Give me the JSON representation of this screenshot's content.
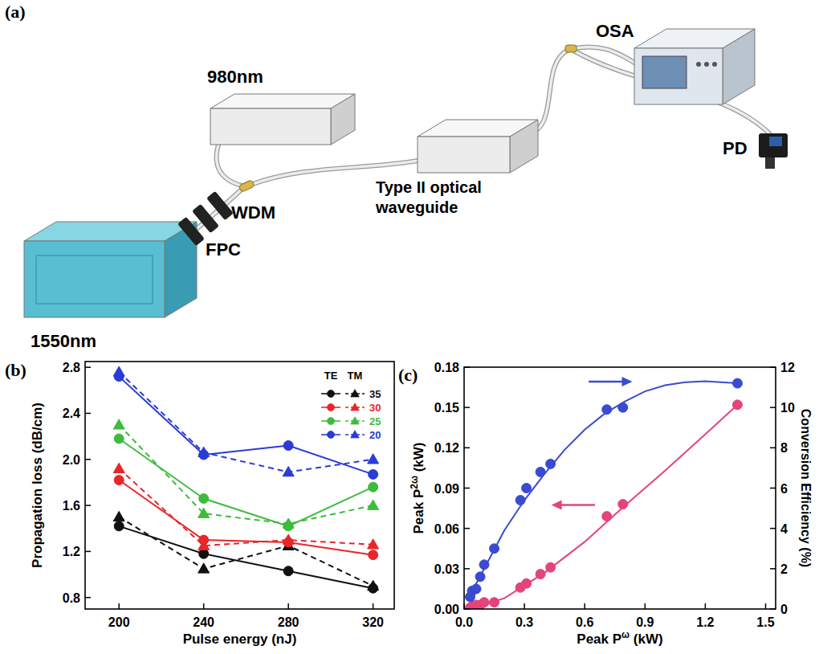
{
  "diagram": {
    "panel": "(a)",
    "nodes": [
      {
        "label": "980nm"
      },
      {
        "label": "1550nm"
      },
      {
        "label": "FPC"
      },
      {
        "label": "WDM"
      },
      {
        "label": "Type II optical waveguide"
      },
      {
        "label": "OSA"
      },
      {
        "label": "PD"
      }
    ]
  },
  "chart_data": [
    {
      "type": "line",
      "panel": "(b)",
      "xlabel": "Pulse energy (nJ)",
      "ylabel": "Propagation loss (dB/cm)",
      "x": [
        200,
        240,
        280,
        320
      ],
      "xlim": [
        184,
        330
      ],
      "xticks": [
        200,
        240,
        280,
        320
      ],
      "ylim": [
        0.7,
        2.85
      ],
      "yticks": [
        0.8,
        1.2,
        1.6,
        {
          "value": 2,
          "label": "2.0"
        },
        2.4,
        2.8
      ],
      "grid": false,
      "legend": "top-right",
      "legend_titles": [
        "TE",
        "TM"
      ],
      "series": [
        {
          "name": "35",
          "group": "TE",
          "color": "#111111",
          "marker": "circle",
          "line_style": "solid",
          "values": [
            1.42,
            1.18,
            1.03,
            0.88
          ]
        },
        {
          "name": "35",
          "group": "TM",
          "color": "#111111",
          "marker": "triangle",
          "line_style": "dashed",
          "values": [
            1.5,
            1.05,
            1.25,
            0.9
          ]
        },
        {
          "name": "30",
          "group": "TE",
          "color": "#e8262a",
          "marker": "circle",
          "line_style": "solid",
          "values": [
            1.82,
            1.3,
            1.28,
            1.17
          ]
        },
        {
          "name": "30",
          "group": "TM",
          "color": "#e8262a",
          "marker": "triangle",
          "line_style": "dashed",
          "values": [
            1.92,
            1.25,
            1.3,
            1.26
          ]
        },
        {
          "name": "25",
          "group": "TE",
          "color": "#3dbb3d",
          "marker": "circle",
          "line_style": "solid",
          "values": [
            2.18,
            1.66,
            1.42,
            1.76
          ]
        },
        {
          "name": "25",
          "group": "TM",
          "color": "#3dbb3d",
          "marker": "triangle",
          "line_style": "dashed",
          "values": [
            2.3,
            1.53,
            1.44,
            1.6
          ]
        },
        {
          "name": "20",
          "group": "TE",
          "color": "#2a3bd6",
          "marker": "circle",
          "line_style": "solid",
          "values": [
            2.72,
            2.04,
            2.12,
            1.87
          ]
        },
        {
          "name": "20",
          "group": "TM",
          "color": "#2a3bd6",
          "marker": "triangle",
          "line_style": "dashed",
          "values": [
            2.76,
            2.06,
            1.89,
            2.0
          ]
        }
      ]
    },
    {
      "type": "scatter",
      "panel": "(c)",
      "xlabel": {
        "text": "Peak P",
        "sup": "ω",
        "after": " (kW)"
      },
      "ylabel": {
        "text": "Peak P",
        "sup": "2ω",
        "after": " (kW)"
      },
      "y2label": "Conversion Efficiency (%)",
      "xlim": [
        0,
        1.55
      ],
      "xticks": [
        {
          "value": 0,
          "label": "0.0"
        },
        0.3,
        0.6,
        0.9,
        1.2,
        1.5
      ],
      "ylim": [
        0,
        0.18
      ],
      "yticks": [
        {
          "value": 0,
          "label": "0.00"
        },
        0.03,
        0.06,
        0.09,
        0.12,
        0.15,
        0.18
      ],
      "y2lim": [
        0,
        12
      ],
      "y2ticks": [
        0,
        2,
        4,
        6,
        8,
        10,
        12
      ],
      "grid": false,
      "series": [
        {
          "type": "scatter",
          "axis": "y",
          "color": "#e4437c",
          "marker": "circle",
          "x": [
            0.03,
            0.04,
            0.06,
            0.08,
            0.1,
            0.15,
            0.28,
            0.31,
            0.38,
            0.43,
            0.71,
            0.79,
            1.36
          ],
          "values": [
            0.001,
            0.002,
            0.003,
            0.003,
            0.005,
            0.005,
            0.016,
            0.019,
            0.026,
            0.031,
            0.069,
            0.078,
            0.152
          ]
        },
        {
          "type": "line",
          "axis": "y",
          "color": "#e4437c",
          "line_style": "solid",
          "x": [
            0.03,
            0.2,
            0.4,
            0.6,
            0.8,
            1.0,
            1.2,
            1.36
          ],
          "values": [
            0.0,
            0.008,
            0.027,
            0.05,
            0.077,
            0.103,
            0.13,
            0.152
          ]
        },
        {
          "type": "scatter",
          "axis": "y2",
          "color": "#3a4bd0",
          "marker": "circle",
          "x": [
            0.03,
            0.04,
            0.06,
            0.08,
            0.1,
            0.15,
            0.28,
            0.31,
            0.38,
            0.43,
            0.71,
            0.79,
            1.36
          ],
          "values": [
            0.6,
            0.9,
            1.0,
            1.6,
            2.2,
            3.0,
            5.4,
            6.0,
            6.8,
            7.2,
            9.9,
            10.0,
            11.2
          ]
        },
        {
          "type": "line",
          "axis": "y2",
          "color": "#3a4bd0",
          "line_style": "solid",
          "x": [
            0.03,
            0.1,
            0.2,
            0.3,
            0.4,
            0.5,
            0.6,
            0.7,
            0.8,
            0.9,
            1.0,
            1.1,
            1.2,
            1.36
          ],
          "values": [
            0.7,
            2.0,
            3.9,
            5.4,
            6.7,
            7.9,
            8.9,
            9.7,
            10.3,
            10.8,
            11.1,
            11.25,
            11.3,
            11.2
          ]
        }
      ]
    }
  ]
}
